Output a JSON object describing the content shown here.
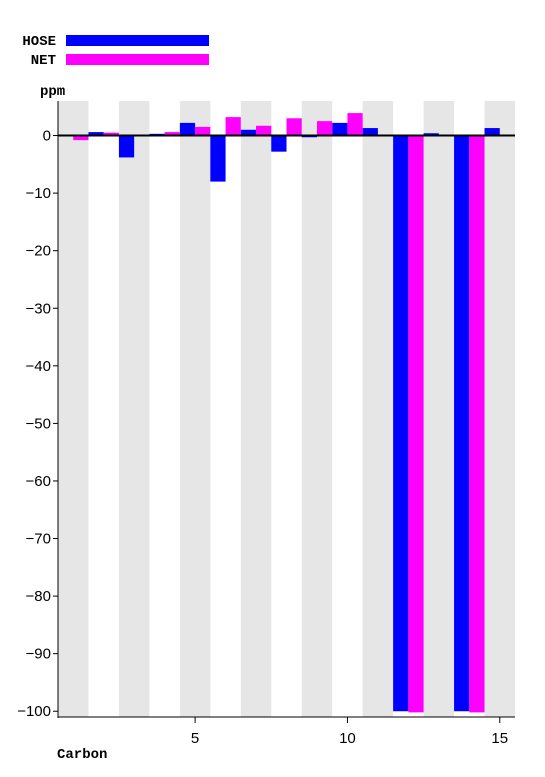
{
  "chart_data": {
    "type": "bar",
    "xlabel": "Carbon",
    "ylabel": "ppm",
    "ylim": [
      -101,
      6
    ],
    "xlim": [
      0.5,
      15.5
    ],
    "yticks": [
      0,
      -10,
      -20,
      -30,
      -40,
      -50,
      -60,
      -70,
      -80,
      -90,
      -100
    ],
    "xticks": [
      5,
      10,
      15
    ],
    "shaded_columns": "alternating",
    "legend_position": "top-left",
    "x": [
      1,
      2,
      3,
      4,
      5,
      6,
      7,
      8,
      9,
      10,
      11,
      12,
      13,
      14,
      15
    ],
    "series": [
      {
        "name": "HOSE",
        "color": "#0000ff",
        "values": [
          0,
          0.6,
          -3.8,
          0.3,
          2.2,
          -8.0,
          1.0,
          -2.8,
          -0.3,
          2.2,
          1.3,
          -100.0,
          0.4,
          -100.0,
          1.3
        ]
      },
      {
        "name": "NET",
        "color": "#ff00ff",
        "values": [
          -0.8,
          0.5,
          0,
          0.6,
          1.5,
          3.2,
          1.7,
          3.0,
          2.5,
          3.9,
          0,
          -100.2,
          0,
          -100.2,
          0
        ]
      }
    ]
  }
}
